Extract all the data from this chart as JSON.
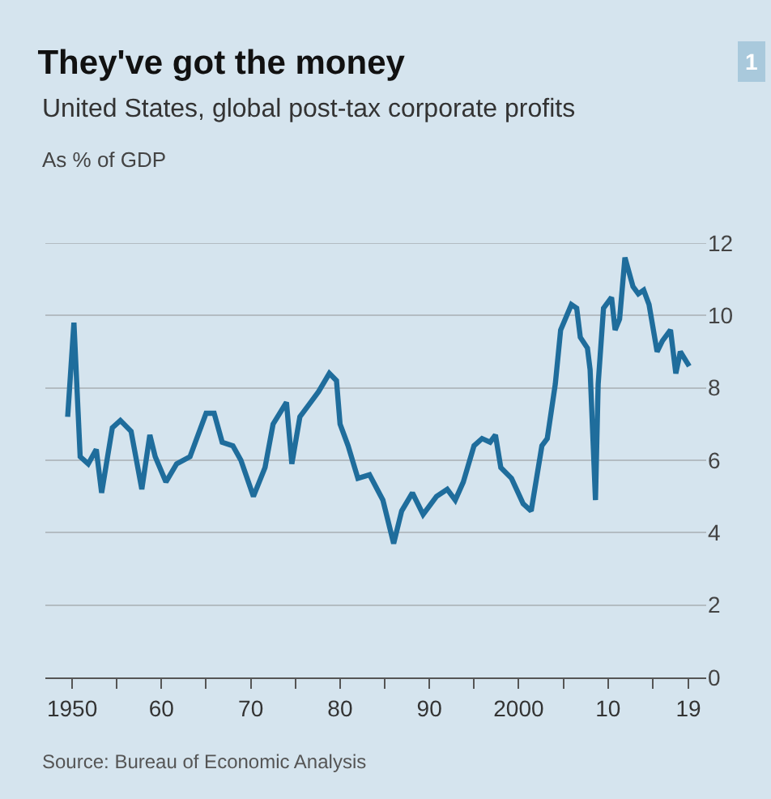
{
  "chart_data": {
    "type": "line",
    "title": "They've got the money",
    "subtitle": "United States, global post-tax corporate profits",
    "ylabel": "As % of GDP",
    "annotations": [
      "1",
      "Source: Bureau of Economic Analysis"
    ],
    "x": [
      1949.5,
      1950.2,
      1950.9,
      1951.8,
      1952.7,
      1953.3,
      1954.5,
      1955.4,
      1956.6,
      1957.8,
      1958.7,
      1959.3,
      1960.5,
      1961.7,
      1963.2,
      1963.8,
      1965.0,
      1965.9,
      1966.8,
      1968.0,
      1968.9,
      1970.3,
      1971.6,
      1972.5,
      1974.0,
      1974.6,
      1975.5,
      1976.7,
      1977.6,
      1978.8,
      1979.6,
      1980.0,
      1980.9,
      1982.0,
      1983.3,
      1984.8,
      1986.0,
      1986.9,
      1988.1,
      1989.3,
      1990.8,
      1992.0,
      1992.9,
      1993.8,
      1995.0,
      1995.9,
      1996.8,
      1997.4,
      1998.0,
      1999.2,
      2000.5,
      2001.4,
      2002.6,
      2003.2,
      2004.1,
      2004.7,
      2005.9,
      2006.5,
      2006.9,
      2007.7,
      2008.0,
      2008.6,
      2008.9,
      2009.5,
      2010.4,
      2010.8,
      2011.3,
      2011.9,
      2012.8,
      2013.4,
      2014.0,
      2014.6,
      2015.5,
      2016.1,
      2017.0,
      2017.6,
      2018.1,
      2019.1
    ],
    "series": [
      {
        "color": "#1f6d9c",
        "values": [
          7.2,
          9.8,
          6.1,
          5.9,
          6.3,
          5.1,
          6.9,
          7.1,
          6.8,
          5.2,
          6.7,
          6.1,
          5.4,
          5.9,
          6.1,
          6.5,
          7.3,
          7.3,
          6.5,
          6.4,
          6.0,
          5.0,
          5.8,
          7.0,
          7.6,
          5.9,
          7.2,
          7.6,
          7.9,
          8.4,
          8.2,
          7.0,
          6.4,
          5.5,
          5.6,
          4.9,
          3.7,
          4.6,
          5.1,
          4.5,
          5.0,
          5.2,
          4.9,
          5.4,
          6.4,
          6.6,
          6.5,
          6.7,
          5.8,
          5.5,
          4.8,
          4.6,
          6.4,
          6.6,
          8.1,
          9.6,
          10.3,
          10.2,
          9.4,
          9.1,
          8.5,
          4.9,
          8.1,
          10.2,
          10.5,
          9.6,
          9.9,
          11.6,
          10.8,
          10.6,
          10.7,
          10.3,
          9.0,
          9.3,
          9.6,
          8.4,
          9.0,
          8.6
        ]
      }
    ],
    "xlim": [
      1947,
      2021
    ],
    "xticks": [
      {
        "value": 1950,
        "label": "1950"
      },
      {
        "value": 1955,
        "label": null
      },
      {
        "value": 1960,
        "label": "60"
      },
      {
        "value": 1965,
        "label": null
      },
      {
        "value": 1970,
        "label": "70"
      },
      {
        "value": 1975,
        "label": null
      },
      {
        "value": 1980,
        "label": "80"
      },
      {
        "value": 1985,
        "label": null
      },
      {
        "value": 1990,
        "label": "90"
      },
      {
        "value": 1995,
        "label": null
      },
      {
        "value": 2000,
        "label": "2000"
      },
      {
        "value": 2005,
        "label": null
      },
      {
        "value": 2010,
        "label": "10"
      },
      {
        "value": 2015,
        "label": null
      },
      {
        "value": 2019,
        "label": "19"
      }
    ],
    "ylim": [
      0,
      12
    ],
    "yticks": [
      0,
      2,
      4,
      6,
      8,
      10,
      12
    ],
    "grid": "y",
    "marker": "none",
    "line_style": "solid"
  }
}
